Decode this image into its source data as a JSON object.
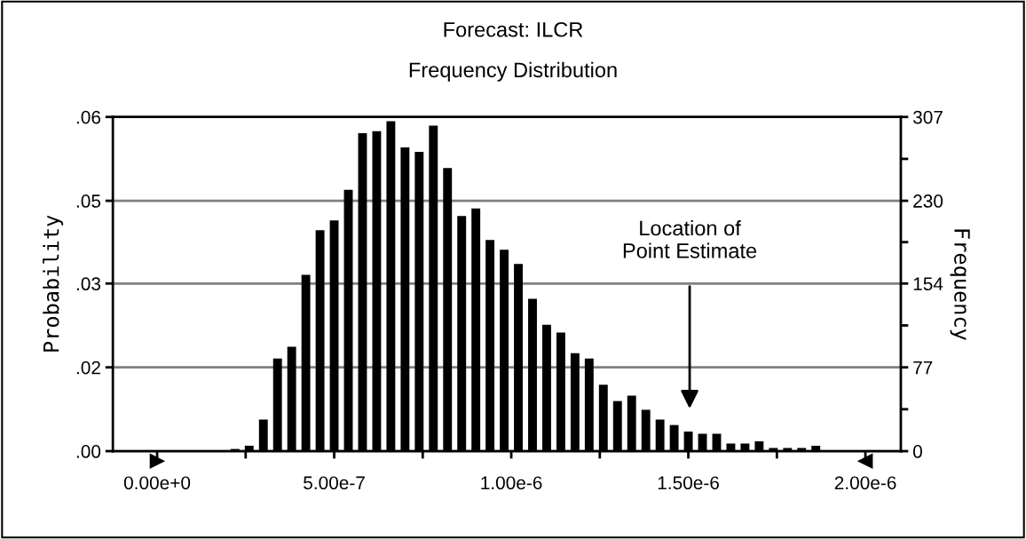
{
  "chart_data": {
    "type": "histogram",
    "title": "Forecast: ILCR",
    "subtitle": "Frequency Distribution",
    "ylabel": "Probability",
    "y2label": "Frequency",
    "bins": [
      2e-07,
      2.4e-07,
      2.8e-07,
      3.2e-07,
      3.6e-07,
      4e-07,
      4.4e-07,
      4.8e-07,
      5.2e-07,
      5.6e-07,
      6e-07,
      6.4e-07,
      6.8e-07,
      7.2e-07,
      7.6e-07,
      8e-07,
      8.4e-07,
      8.8e-07,
      9.2e-07,
      9.6e-07,
      1e-06,
      1.04e-06,
      1.08e-06,
      1.12e-06,
      1.16e-06,
      1.2e-06,
      1.24e-06,
      1.28e-06,
      1.32e-06,
      1.36e-06,
      1.4e-06,
      1.44e-06,
      1.48e-06,
      1.52e-06,
      1.56e-06,
      1.6e-06,
      1.64e-06,
      1.68e-06,
      1.72e-06,
      1.76e-06,
      1.8e-06,
      1.84e-06,
      1.88e-06
    ],
    "series": [
      {
        "axis": "y2",
        "color": "#000000",
        "values": [
          2,
          5,
          29,
          85,
          96,
          162,
          203,
          212,
          240,
          292,
          294,
          303,
          279,
          275,
          299,
          260,
          216,
          223,
          194,
          185,
          172,
          140,
          116,
          109,
          90,
          85,
          61,
          46,
          51,
          38,
          29,
          24,
          18,
          16,
          16,
          7,
          7,
          9,
          3,
          3,
          3,
          5
        ]
      }
    ],
    "xlim": [
      -1.25e-07,
      2.1e-06
    ],
    "xticks": [
      {
        "value": 0,
        "label": "0.00e+0"
      },
      {
        "value": 2.5e-07,
        "label": null
      },
      {
        "value": 5e-07,
        "label": "5.00e-7"
      },
      {
        "value": 7.5e-07,
        "label": null
      },
      {
        "value": 1e-06,
        "label": "1.00e-6"
      },
      {
        "value": 1.25e-06,
        "label": null
      },
      {
        "value": 1.5e-06,
        "label": "1.50e-6"
      },
      {
        "value": 1.75e-06,
        "label": null
      },
      {
        "value": 2e-06,
        "label": "2.00e-6"
      }
    ],
    "ylim": [
      0,
      0.0614
    ],
    "yticks": [
      {
        "value": 0,
        "label": ".00"
      },
      {
        "value": 0.0154,
        "label": ".02"
      },
      {
        "value": 0.0308,
        "label": ".03"
      },
      {
        "value": 0.046,
        "label": ".05"
      },
      {
        "value": 0.0614,
        "label": ".06"
      }
    ],
    "y2lim": [
      0,
      307
    ],
    "y2ticks": [
      0,
      {
        "value": 38.5,
        "label": null
      },
      77,
      {
        "value": 115.5,
        "label": null
      },
      154,
      {
        "value": 192,
        "label": null
      },
      230,
      {
        "value": 268.5,
        "label": null
      },
      307
    ],
    "grid": "y",
    "annotations": [
      "Location of\nPoint Estimate"
    ]
  }
}
